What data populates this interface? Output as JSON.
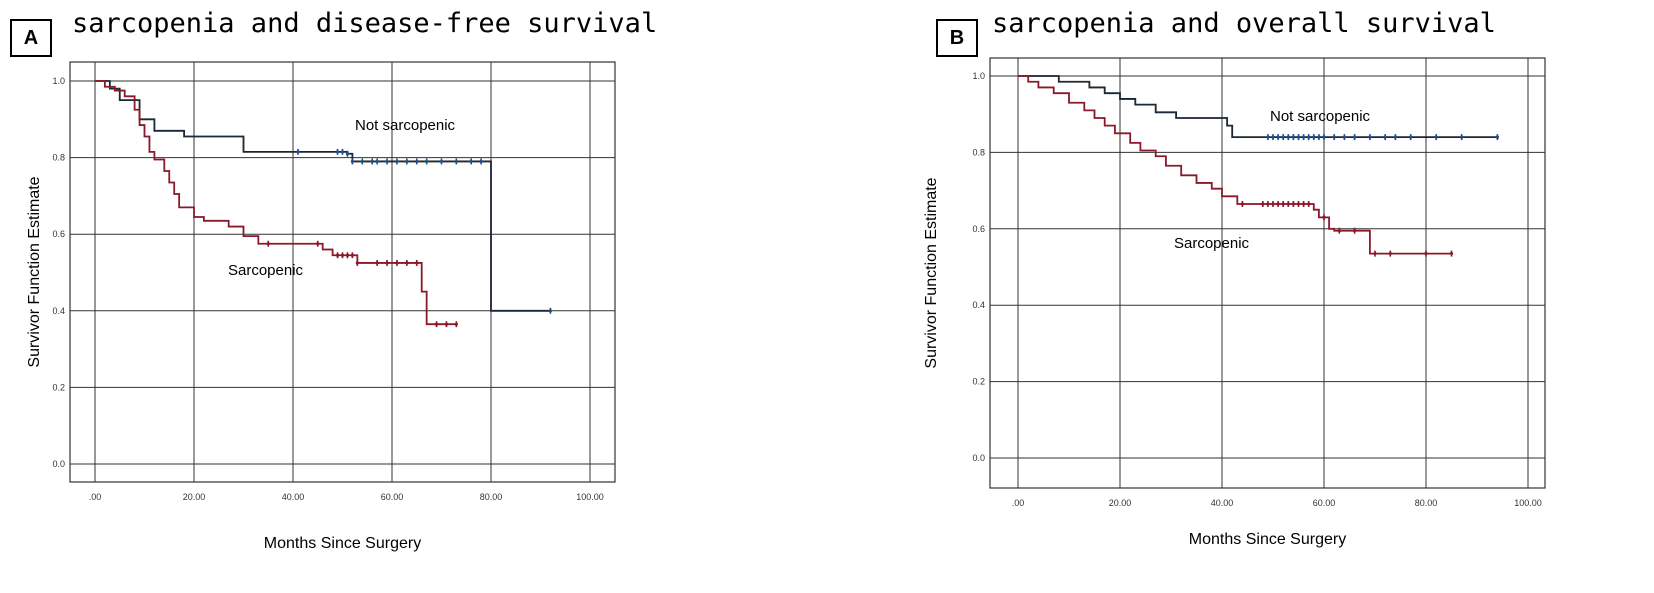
{
  "chart_data": [
    {
      "type": "line",
      "panel_label": "A",
      "title": "sarcopenia and disease-free survival",
      "xlabel": "Months Since Surgery",
      "ylabel": "Survivor Function Estimate",
      "xlim": [
        0,
        100
      ],
      "ylim": [
        0,
        1
      ],
      "xticks": [
        ".00",
        "20.00",
        "40.00",
        "60.00",
        "80.00",
        "100.00"
      ],
      "yticks": [
        "0.0",
        "0.2",
        "0.4",
        "0.6",
        "0.8",
        "1.0"
      ],
      "grid": true,
      "series": [
        {
          "name": "Not sarcopenic",
          "color": "#1f4e8c",
          "steps": [
            [
              0,
              1.0
            ],
            [
              3,
              0.98
            ],
            [
              5,
              0.95
            ],
            [
              9,
              0.9
            ],
            [
              12,
              0.87
            ],
            [
              18,
              0.855
            ],
            [
              30,
              0.815
            ],
            [
              51,
              0.81
            ],
            [
              52,
              0.79
            ],
            [
              80,
              0.79
            ],
            [
              80,
              0.4
            ],
            [
              92,
              0.4
            ]
          ],
          "censored": [
            41,
            49,
            50,
            51,
            52,
            54,
            56,
            57,
            59,
            61,
            63,
            65,
            67,
            70,
            73,
            76,
            78,
            92
          ]
        },
        {
          "name": "Sarcopenic",
          "color": "#8b1a2b",
          "steps": [
            [
              0,
              1.0
            ],
            [
              2,
              0.985
            ],
            [
              4,
              0.975
            ],
            [
              6,
              0.96
            ],
            [
              8,
              0.925
            ],
            [
              9,
              0.885
            ],
            [
              10,
              0.855
            ],
            [
              11,
              0.815
            ],
            [
              12,
              0.795
            ],
            [
              14,
              0.765
            ],
            [
              15,
              0.735
            ],
            [
              16,
              0.705
            ],
            [
              17,
              0.67
            ],
            [
              20,
              0.645
            ],
            [
              22,
              0.635
            ],
            [
              27,
              0.62
            ],
            [
              30,
              0.595
            ],
            [
              33,
              0.575
            ],
            [
              46,
              0.56
            ],
            [
              48,
              0.545
            ],
            [
              53,
              0.525
            ],
            [
              66,
              0.45
            ],
            [
              67,
              0.365
            ],
            [
              73,
              0.365
            ]
          ],
          "censored": [
            35,
            45,
            49,
            50,
            51,
            52,
            53,
            57,
            59,
            61,
            63,
            65,
            69,
            71,
            73
          ]
        }
      ],
      "annotations": [
        "Not sarcopenic",
        "Sarcopenic"
      ]
    },
    {
      "type": "line",
      "panel_label": "B",
      "title": "sarcopenia and overall survival",
      "xlabel": "Months Since Surgery",
      "ylabel": "Survivor Function Estimate",
      "xlim": [
        0,
        100
      ],
      "ylim": [
        0,
        1
      ],
      "xticks": [
        ".00",
        "20.00",
        "40.00",
        "60.00",
        "80.00",
        "100.00"
      ],
      "yticks": [
        "0.0",
        "0.2",
        "0.4",
        "0.6",
        "0.8",
        "1.0"
      ],
      "grid": true,
      "series": [
        {
          "name": "Not sarcopenic",
          "color": "#1f4e8c",
          "steps": [
            [
              0,
              1.0
            ],
            [
              8,
              0.985
            ],
            [
              14,
              0.97
            ],
            [
              17,
              0.955
            ],
            [
              20,
              0.94
            ],
            [
              23,
              0.925
            ],
            [
              27,
              0.905
            ],
            [
              31,
              0.89
            ],
            [
              41,
              0.87
            ],
            [
              42,
              0.84
            ],
            [
              94,
              0.84
            ]
          ],
          "censored": [
            49,
            50,
            51,
            52,
            53,
            54,
            55,
            56,
            57,
            58,
            59,
            60,
            62,
            64,
            66,
            69,
            72,
            74,
            77,
            82,
            87,
            94
          ]
        },
        {
          "name": "Sarcopenic",
          "color": "#8b1a2b",
          "steps": [
            [
              0,
              1.0
            ],
            [
              2,
              0.985
            ],
            [
              4,
              0.97
            ],
            [
              7,
              0.955
            ],
            [
              10,
              0.93
            ],
            [
              13,
              0.91
            ],
            [
              15,
              0.89
            ],
            [
              17,
              0.87
            ],
            [
              19,
              0.85
            ],
            [
              22,
              0.825
            ],
            [
              24,
              0.805
            ],
            [
              27,
              0.79
            ],
            [
              29,
              0.765
            ],
            [
              32,
              0.74
            ],
            [
              35,
              0.72
            ],
            [
              38,
              0.705
            ],
            [
              40,
              0.685
            ],
            [
              43,
              0.665
            ],
            [
              58,
              0.65
            ],
            [
              59,
              0.63
            ],
            [
              61,
              0.6
            ],
            [
              62,
              0.595
            ],
            [
              69,
              0.535
            ],
            [
              85,
              0.535
            ]
          ],
          "censored": [
            44,
            48,
            49,
            50,
            51,
            52,
            53,
            54,
            55,
            56,
            57,
            60,
            63,
            66,
            70,
            73,
            80,
            85
          ]
        }
      ],
      "annotations": [
        "Not sarcopenic",
        "Sarcopenic"
      ]
    }
  ]
}
